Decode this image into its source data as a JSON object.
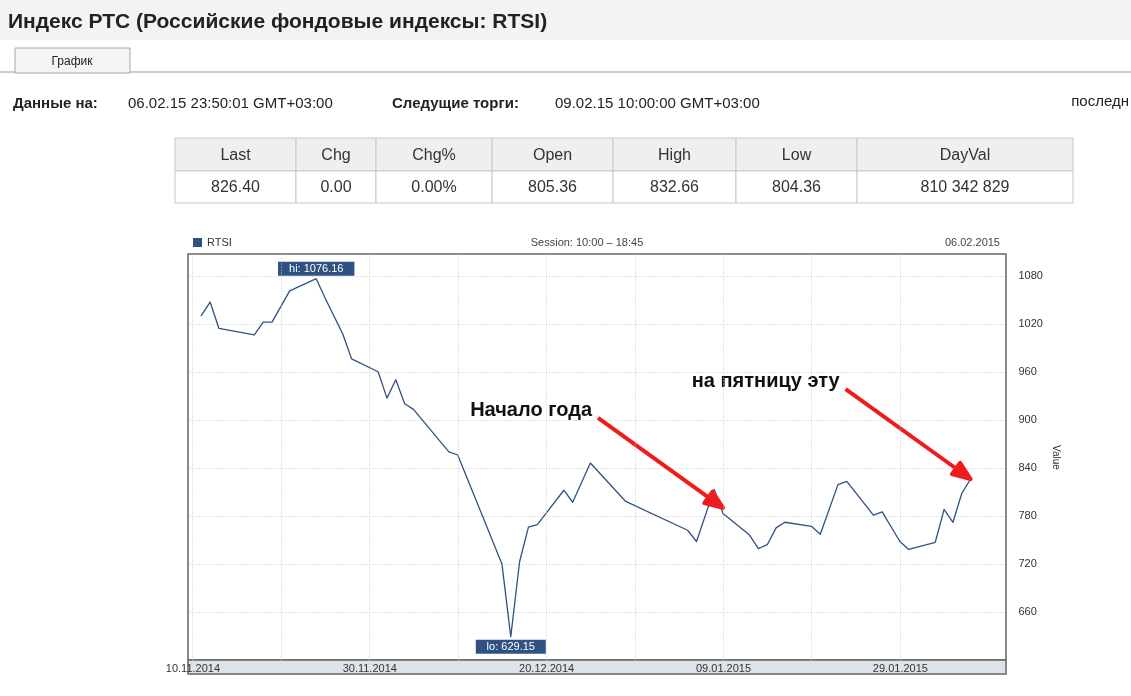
{
  "chart_data": [
    {
      "type": "other",
      "title": "Индекс РТС (Российские фондовые индексы: RTSI)",
      "annotations": [
        "График",
        "Данные на:",
        "06.02.15 23:50:01 GMT+03:00",
        "Следущие торги:",
        "09.02.15 10:00:00 GMT+03:00",
        "последн"
      ],
      "categories": [
        "Last",
        "Chg",
        "Chg%",
        "Open",
        "High",
        "Low",
        "DayVal"
      ],
      "value_labels": [
        "826.40",
        "0.00",
        "0.00%",
        "805.36",
        "832.66",
        "804.36",
        "810 342 829"
      ]
    },
    {
      "type": "line",
      "subtitle": "Session: 10:00 – 18:45",
      "ylabel": "Value",
      "annotations": [
        "06.02.2015",
        {
          "text": "Начало года",
          "x": "2015-01-09",
          "y": 790
        },
        {
          "text": "на пятницу эту",
          "x": "2015-02-06",
          "y": 826
        }
      ],
      "x": [
        "2014-11-11",
        "2014-11-12",
        "2014-11-13",
        "2014-11-17",
        "2014-11-18",
        "2014-11-19",
        "2014-11-21",
        "2014-11-24",
        "2014-11-25",
        "2014-11-27",
        "2014-11-28",
        "2014-12-01",
        "2014-12-02",
        "2014-12-03",
        "2014-12-04",
        "2014-12-05",
        "2014-12-09",
        "2014-12-10",
        "2014-12-15",
        "2014-12-16",
        "2014-12-17",
        "2014-12-18",
        "2014-12-19",
        "2014-12-22",
        "2014-12-23",
        "2014-12-25",
        "2014-12-29",
        "2015-01-05",
        "2015-01-06",
        "2015-01-08",
        "2015-01-09",
        "2015-01-12",
        "2015-01-13",
        "2015-01-14",
        "2015-01-15",
        "2015-01-16",
        "2015-01-19",
        "2015-01-20",
        "2015-01-22",
        "2015-01-23",
        "2015-01-26",
        "2015-01-27",
        "2015-01-29",
        "2015-01-30",
        "2015-02-02",
        "2015-02-03",
        "2015-02-04",
        "2015-02-05",
        "2015-02-06"
      ],
      "series": [
        {
          "name": "RTSI",
          "color": "#2f5283",
          "values": [
            1030,
            1047,
            1014,
            1006,
            1022,
            1022,
            1061,
            1076.16,
            1052,
            1007,
            976,
            960,
            927,
            950,
            920,
            913,
            860,
            856,
            720,
            629.15,
            723,
            766,
            769,
            812,
            797,
            846,
            798,
            762,
            748,
            813,
            783,
            756,
            739,
            744,
            765,
            772,
            767,
            757,
            819,
            823,
            781,
            785,
            748,
            738,
            747,
            788,
            772,
            808,
            826
          ],
          "value_labels": [
            null,
            null,
            null,
            null,
            null,
            null,
            null,
            "hi: 1076.16",
            null,
            null,
            null,
            null,
            null,
            null,
            null,
            null,
            null,
            null,
            null,
            "lo: 629.15",
            null,
            null,
            null,
            null,
            null,
            null,
            null,
            null,
            null,
            null,
            null,
            null,
            null,
            null,
            null,
            null,
            null,
            null,
            null,
            null,
            null,
            null,
            null,
            null,
            null,
            null,
            null,
            null,
            null
          ]
        }
      ],
      "xlim": [
        "2014-11-09T12:00",
        "2015-02-10"
      ],
      "ylim": [
        600,
        1107
      ],
      "xticks": [
        {
          "value": "2014-11-10",
          "label": "10.11.2014"
        },
        {
          "value": "2014-11-20",
          "label": null
        },
        {
          "value": "2014-11-30",
          "label": "30.11.2014"
        },
        {
          "value": "2014-12-10",
          "label": null
        },
        {
          "value": "2014-12-20",
          "label": "20.12.2014"
        },
        {
          "value": "2014-12-30",
          "label": null
        },
        {
          "value": "2015-01-09",
          "label": "09.01.2015"
        },
        {
          "value": "2015-01-19",
          "label": null
        },
        {
          "value": "2015-01-29",
          "label": "29.01.2015"
        }
      ],
      "yticks": [
        660,
        720,
        780,
        840,
        900,
        960,
        1020,
        1080
      ],
      "grid": true,
      "legend": "top left"
    }
  ]
}
